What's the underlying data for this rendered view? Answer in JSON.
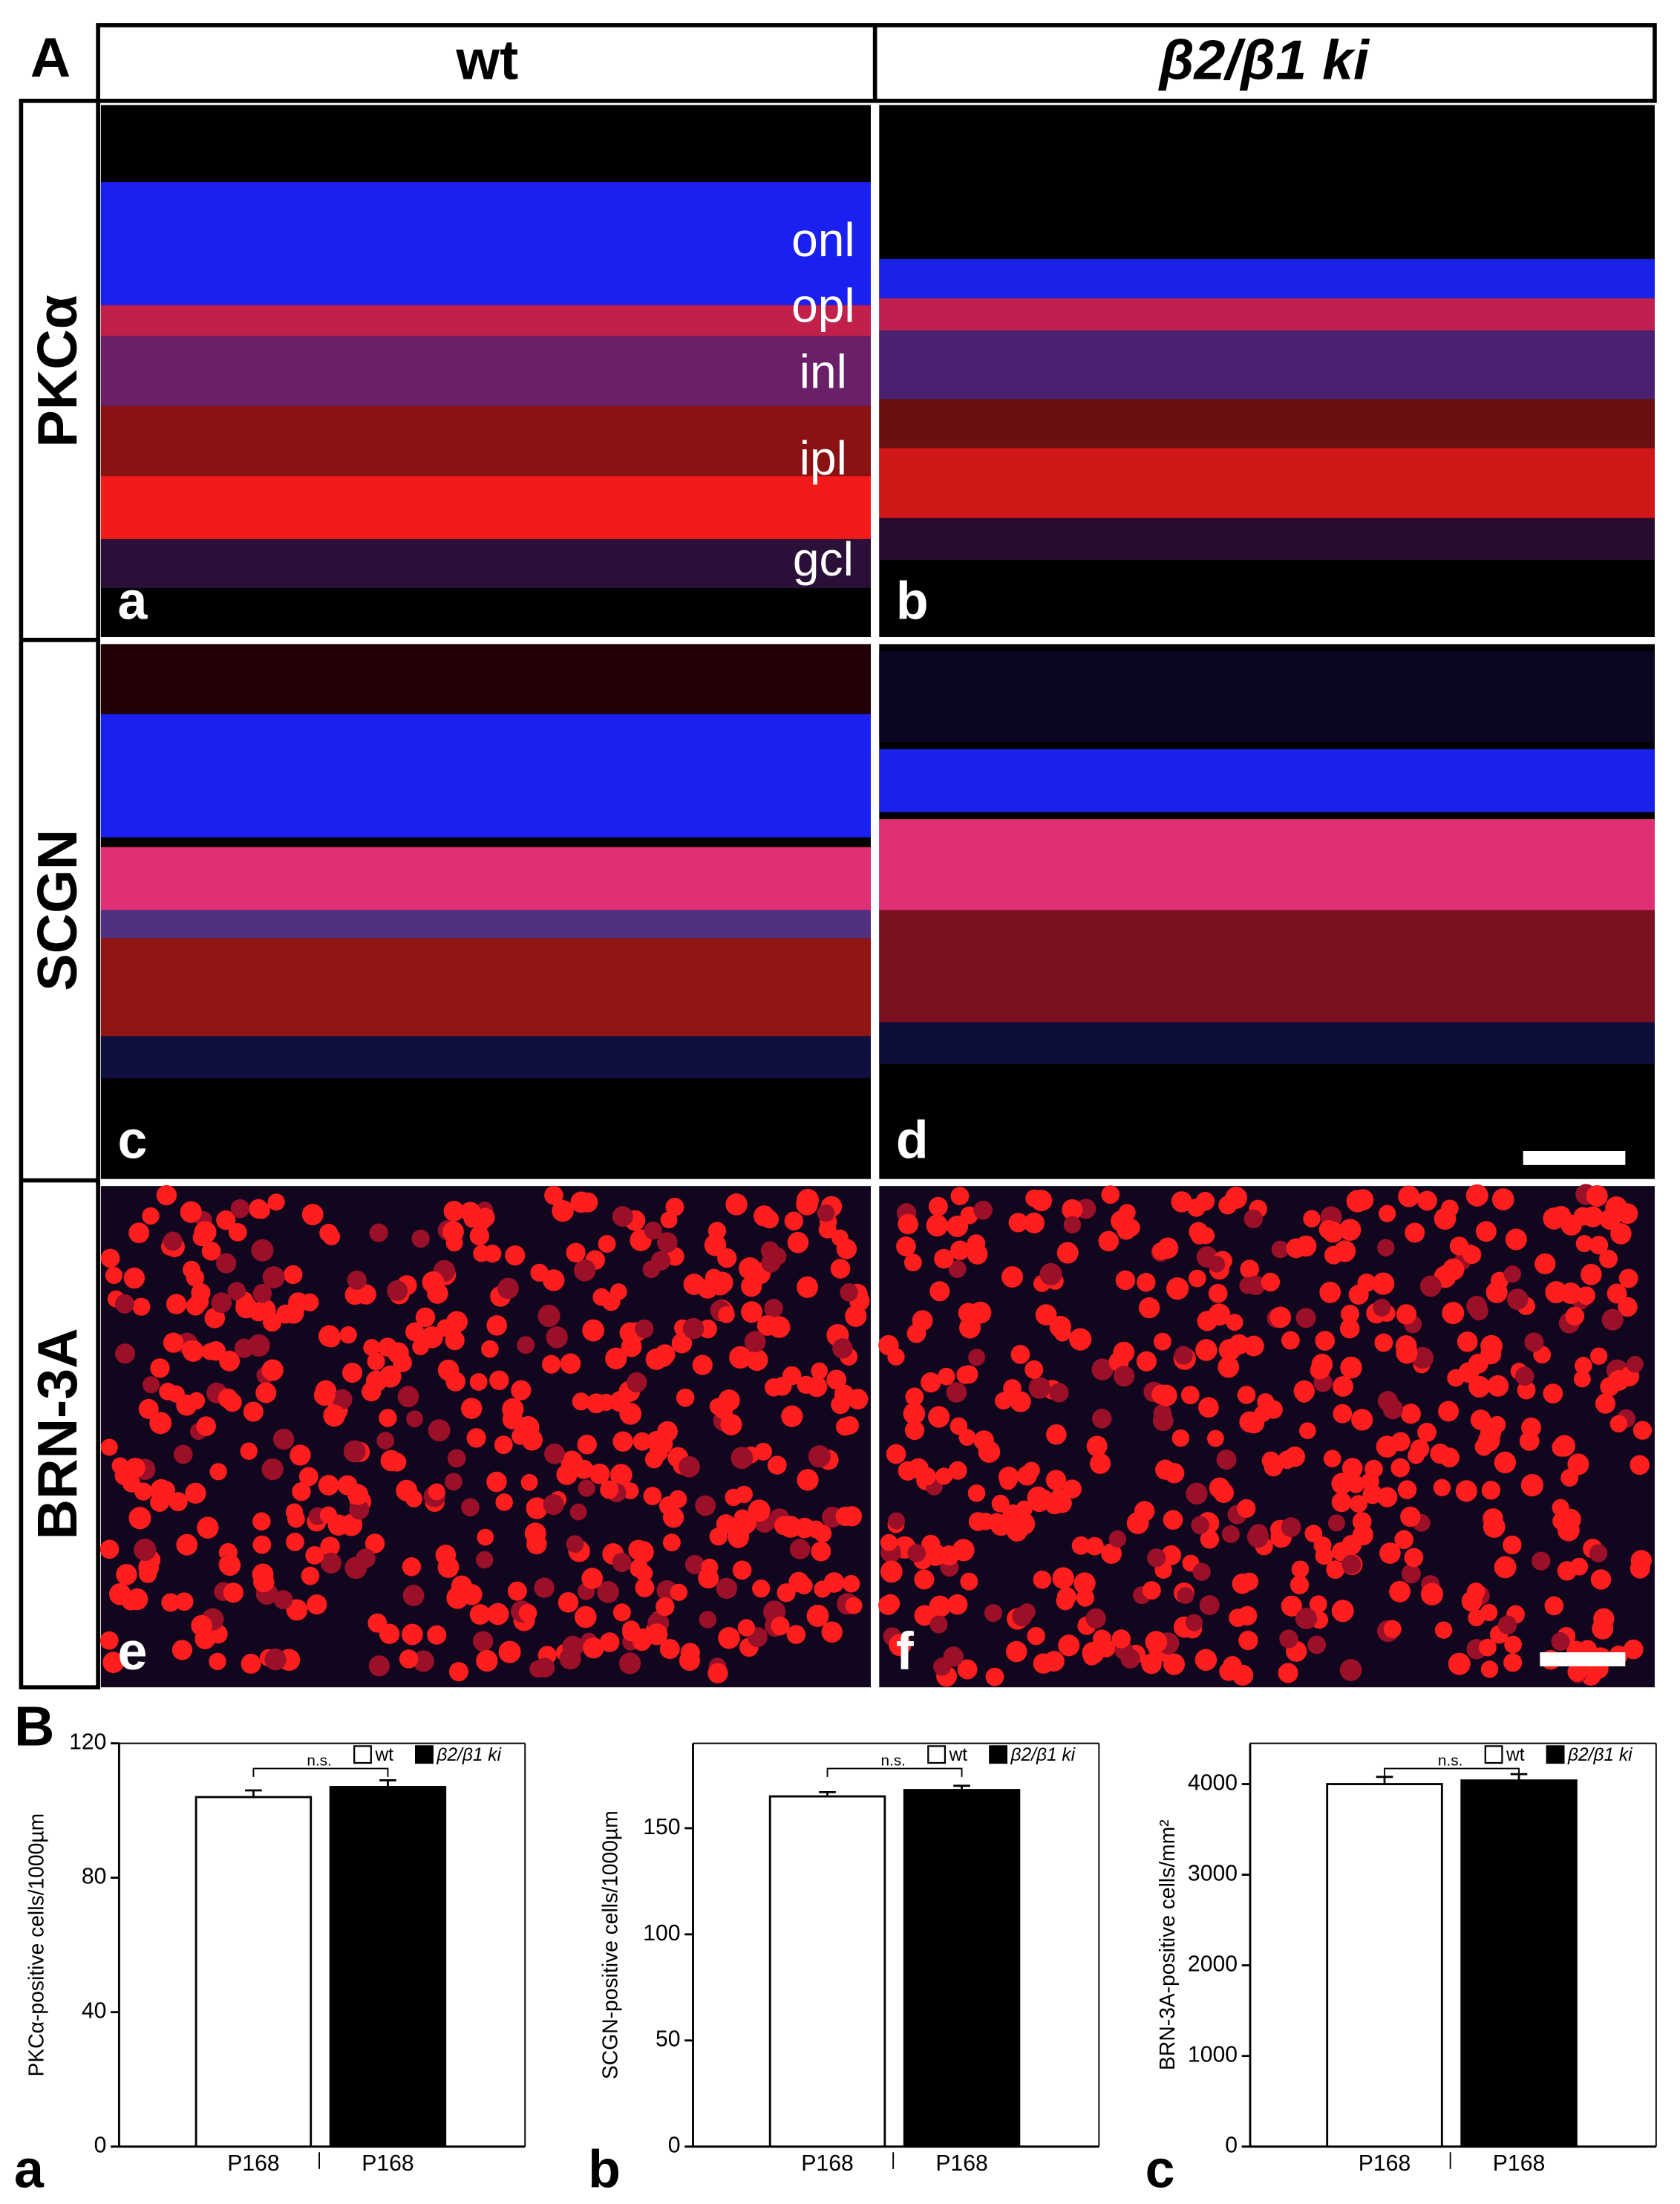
{
  "figure": {
    "label_a": "A",
    "label_b": "B",
    "columns": [
      "wt",
      "β2/β1 ki"
    ],
    "rows": [
      "PKCα",
      "SCGN",
      "BRN-3A"
    ],
    "layers": [
      "onl",
      "opl",
      "inl",
      "ipl",
      "gcl"
    ],
    "panel_letters": [
      "a",
      "b",
      "c",
      "d",
      "e",
      "f"
    ]
  },
  "chart_data": [
    {
      "type": "bar",
      "panel_letter": "a",
      "ylabel": "PKCα-positive cells/1000µm",
      "categories": [
        "P168"
      ],
      "annotation": "n.s.",
      "ylim": [
        0,
        120
      ],
      "yticks": [
        0,
        40,
        80,
        120
      ],
      "series": [
        {
          "name": "wt",
          "color": "#ffffff",
          "values": [
            104
          ],
          "errors": [
            2
          ]
        },
        {
          "name": "β2/β1 ki",
          "color": "#000000",
          "values": [
            107
          ],
          "errors": [
            2
          ]
        }
      ]
    },
    {
      "type": "bar",
      "panel_letter": "b",
      "ylabel": "SCGN-positive cells/1000µm",
      "categories": [
        "P168"
      ],
      "annotation": "n.s.",
      "ylim": [
        0,
        190
      ],
      "yticks": [
        0,
        50,
        100,
        150
      ],
      "series": [
        {
          "name": "wt",
          "color": "#ffffff",
          "values": [
            165
          ],
          "errors": [
            2
          ]
        },
        {
          "name": "β2/β1 ki",
          "color": "#000000",
          "values": [
            168
          ],
          "errors": [
            2
          ]
        }
      ]
    },
    {
      "type": "bar",
      "panel_letter": "c",
      "ylabel": "BRN-3A-positive cells/mm²",
      "categories": [
        "P168"
      ],
      "annotation": "n.s.",
      "ylim": [
        0,
        4450
      ],
      "yticks": [
        0,
        1000,
        2000,
        3000,
        4000
      ],
      "series": [
        {
          "name": "wt",
          "color": "#ffffff",
          "values": [
            4000
          ],
          "errors": [
            80
          ]
        },
        {
          "name": "β2/β1 ki",
          "color": "#000000",
          "values": [
            4040
          ],
          "errors": [
            70
          ]
        }
      ]
    }
  ]
}
